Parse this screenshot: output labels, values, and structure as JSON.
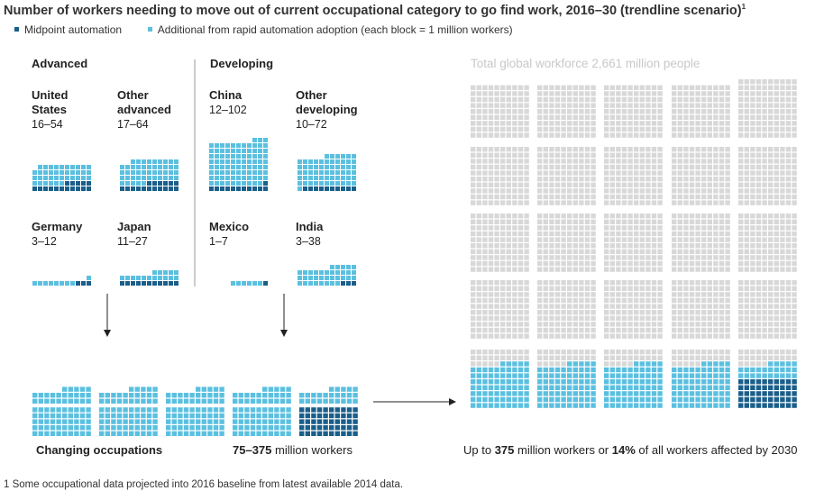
{
  "title": "Number of workers needing to move out of current occupational category to go find work, 2016–30 (trendline scenario)",
  "title_footnote_mark": "1",
  "legend": [
    {
      "label": "Midpoint automation",
      "color": "#1a5e8a"
    },
    {
      "label": "Additional from rapid automation adoption (each block = 1 million workers)",
      "color": "#5bc0e0"
    }
  ],
  "colors": {
    "midpoint": "#1a5e8a",
    "rapid": "#5bc0e0",
    "workforce": "#d8d8d8",
    "axis": "#888888"
  },
  "groups": {
    "advanced": "Advanced",
    "developing": "Developing"
  },
  "chart_data": {
    "type": "unit-block",
    "unit": "1 million workers per block",
    "countries": [
      {
        "name": "United States",
        "lines": [
          "United",
          "States"
        ],
        "group": "Advanced",
        "range": "16–54",
        "midpoint": 16,
        "rapid": 54
      },
      {
        "name": "Other advanced",
        "lines": [
          "Other",
          "advanced"
        ],
        "group": "Advanced",
        "range": "17–64",
        "midpoint": 17,
        "rapid": 64
      },
      {
        "name": "China",
        "lines": [
          "China"
        ],
        "group": "Developing",
        "range": "12–102",
        "midpoint": 12,
        "rapid": 102
      },
      {
        "name": "Other developing",
        "lines": [
          "Other",
          "developing"
        ],
        "group": "Developing",
        "range": "10–72",
        "midpoint": 10,
        "rapid": 72
      },
      {
        "name": "Germany",
        "lines": [
          "Germany"
        ],
        "group": "Advanced",
        "range": "3–12",
        "midpoint": 3,
        "rapid": 12
      },
      {
        "name": "Japan",
        "lines": [
          "Japan"
        ],
        "group": "Advanced",
        "range": "11–27",
        "midpoint": 11,
        "rapid": 27
      },
      {
        "name": "Mexico",
        "lines": [
          "Mexico"
        ],
        "group": "Developing",
        "range": "1–7",
        "midpoint": 1,
        "rapid": 7
      },
      {
        "name": "India",
        "lines": [
          "India"
        ],
        "group": "Developing",
        "range": "3–38",
        "midpoint": 3,
        "rapid": 38
      }
    ],
    "total": {
      "midpoint": 75,
      "rapid": 375
    },
    "global_workforce": 2661,
    "share_affected": "14%"
  },
  "global_title": "Total global workforce 2,661 million people",
  "summary": {
    "left_label": "Changing occupations",
    "mid_range": "75–375",
    "mid_suffix": " million workers",
    "right_prefix": "Up to ",
    "right_value": "375",
    "right_mid": " million workers or ",
    "right_pct": "14%",
    "right_suffix": " of all workers affected by 2030"
  },
  "footnote": "1 Some occupational data projected into 2016 baseline from latest available 2014 data."
}
